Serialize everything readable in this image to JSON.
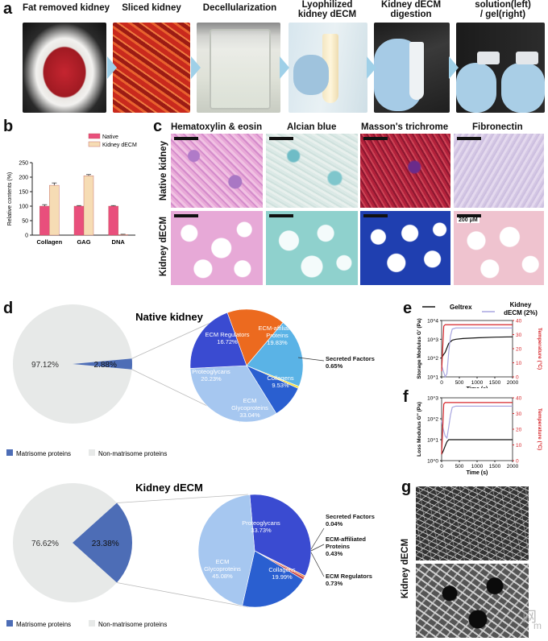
{
  "panels": {
    "a": "a",
    "b": "b",
    "c": "c",
    "d": "d",
    "e": "e",
    "f": "f",
    "g": "g"
  },
  "process_steps": [
    {
      "line1": "Fat removed kidney",
      "line2": ""
    },
    {
      "line1": "Sliced kidney",
      "line2": ""
    },
    {
      "line1": "Decellularization",
      "line2": ""
    },
    {
      "line1": "Lyophilized",
      "line2": "kidney dECM"
    },
    {
      "line1": "Kidney dECM",
      "line2": "digestion"
    },
    {
      "line1": "solution(left)",
      "line2": "/ gel(right)"
    }
  ],
  "histology": {
    "columns": [
      "Hematoxylin & eosin",
      "Alcian blue",
      "Masson's trichrome",
      "Fibronectin"
    ],
    "rows": [
      "Native kidney",
      "Kidney dECM"
    ],
    "scale_label": "200 μM"
  },
  "d_native": {
    "title": "Native kidney",
    "big_pie_labels": [
      "97.12%",
      "2.88%"
    ],
    "legend": [
      "Matrisome proteins",
      "Non-matrisome proteins"
    ],
    "slices": [
      {
        "name": "ECM Regulators",
        "value": "16.72%"
      },
      {
        "name": "ECM-affiliated Proteins",
        "value": "19.83%"
      },
      {
        "name": "Secreted Factors",
        "value": "0.65%"
      },
      {
        "name": "Collagens",
        "value": "9.53%"
      },
      {
        "name": "ECM Glycoproteins",
        "value": "33.04%"
      },
      {
        "name": "Proteoglycans",
        "value": "20.23%"
      }
    ]
  },
  "d_decm": {
    "title": "Kidney dECM",
    "big_pie_labels": [
      "76.62%",
      "23.38%"
    ],
    "legend": [
      "Matrisome proteins",
      "Non-matrisome proteins"
    ],
    "slices": [
      {
        "name": "Proteoglycans",
        "value": "33.73%"
      },
      {
        "name": "Secreted Factors",
        "value": "0.04%"
      },
      {
        "name": "ECM-affiliated Proteins",
        "value": "0.43%"
      },
      {
        "name": "ECM Regulators",
        "value": "0.73%"
      },
      {
        "name": "Collagens",
        "value": "19.99%"
      },
      {
        "name": "ECM Glycoproteins",
        "value": "45.08%"
      }
    ]
  },
  "e_legend": {
    "geltrex": "Geltrex",
    "kidney": "Kidney",
    "kidney2": "dECM (2%)"
  },
  "g_label": "Kidney dECM",
  "watermark": "网",
  "watermark2": "m",
  "colors": {
    "native": "#e94f7c",
    "decm": "#f6dcb4",
    "geltrex": "#111111",
    "kidney_decm": "#a9a6e0",
    "temperature": "#d7262b"
  },
  "chart_data": [
    {
      "type": "bar",
      "title": "",
      "ylabel": "Relative contents (%)",
      "xlabel": "",
      "categories": [
        "Collagen",
        "GAG",
        "DNA"
      ],
      "ylim": [
        0,
        250
      ],
      "yticks": [
        "0",
        "50",
        "100",
        "150",
        "200",
        "250"
      ],
      "legend_position": "top-right",
      "series": [
        {
          "name": "Native",
          "values": [
            100,
            100,
            100
          ],
          "errors": [
            5,
            2,
            2
          ]
        },
        {
          "name": "Kidney dECM",
          "values": [
            172,
            205,
            2
          ],
          "errors": [
            8,
            4,
            1
          ]
        }
      ]
    },
    {
      "type": "line",
      "ylabel": "Storage Modulus G' (Pa)",
      "y2label": "Temperature (°C)",
      "xlabel": "Time (s)",
      "xlim": [
        0,
        2000
      ],
      "xticks": [
        "0",
        "500",
        "1000",
        "1500",
        "2000"
      ],
      "yticks_log": [
        "10^1",
        "10^2",
        "10^3",
        "10^4"
      ],
      "y2ticks": [
        "0",
        "10",
        "20",
        "30",
        "40"
      ],
      "series": [
        {
          "name": "Geltrex",
          "x": [
            0,
            50,
            100,
            150,
            200,
            300,
            400,
            600,
            1000,
            1500,
            2000
          ],
          "y": [
            100,
            150,
            200,
            350,
            600,
            900,
            1000,
            1100,
            1200,
            1300,
            1350
          ]
        },
        {
          "name": "Kidney dECM (2%)",
          "x": [
            0,
            50,
            100,
            150,
            200,
            250,
            300,
            400,
            600,
            1000,
            2000
          ],
          "y": [
            40,
            20,
            10,
            15,
            200,
            1500,
            3500,
            4000,
            4000,
            4000,
            4000
          ]
        },
        {
          "name": "Temperature",
          "x": [
            0,
            60,
            100,
            2000
          ],
          "y": [
            4,
            36,
            37,
            37
          ]
        }
      ]
    },
    {
      "type": "line",
      "ylabel": "Loss Modulus G'' (Pa)",
      "y2label": "Temperature (°C)",
      "xlabel": "Time (s)",
      "xlim": [
        0,
        2000
      ],
      "xticks": [
        "0",
        "500",
        "1000",
        "1500",
        "2000"
      ],
      "yticks_log": [
        "10^0",
        "10^1",
        "10^2",
        "10^3"
      ],
      "y2ticks": [
        "0",
        "10",
        "20",
        "30",
        "40"
      ],
      "series": [
        {
          "name": "Geltrex",
          "x": [
            0,
            50,
            100,
            150,
            200,
            300,
            500,
            1000,
            2000
          ],
          "y": [
            2,
            3,
            5,
            8,
            10,
            10,
            10,
            10,
            10
          ]
        },
        {
          "name": "Kidney dECM (2%)",
          "x": [
            0,
            50,
            100,
            150,
            200,
            250,
            300,
            400,
            600,
            1000,
            2000
          ],
          "y": [
            80,
            30,
            15,
            12,
            40,
            150,
            350,
            400,
            400,
            400,
            400
          ]
        },
        {
          "name": "Temperature",
          "x": [
            0,
            60,
            100,
            2000
          ],
          "y": [
            4,
            36,
            37,
            37
          ]
        }
      ]
    }
  ]
}
